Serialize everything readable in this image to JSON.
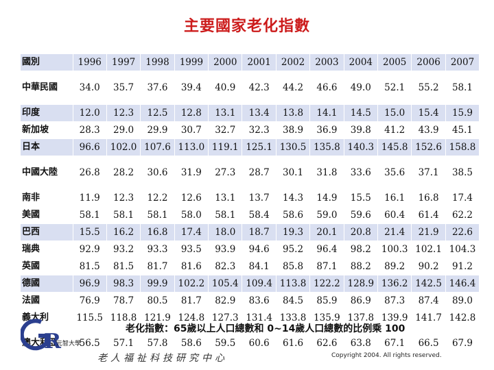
{
  "title": "主要國家老化指數",
  "table": {
    "header_label": "國別",
    "years": [
      "1996",
      "1997",
      "1998",
      "1999",
      "2000",
      "2001",
      "2002",
      "2003",
      "2004",
      "2005",
      "2006",
      "2007"
    ],
    "rows": [
      {
        "country": "中華民國",
        "values": [
          "34.0",
          "35.7",
          "37.6",
          "39.4",
          "40.9",
          "42.3",
          "44.2",
          "46.6",
          "49.0",
          "52.1",
          "55.2",
          "58.1"
        ]
      },
      {
        "country": "印度",
        "values": [
          "12.0",
          "12.3",
          "12.5",
          "12.8",
          "13.1",
          "13.4",
          "13.8",
          "14.1",
          "14.5",
          "15.0",
          "15.4",
          "15.9"
        ]
      },
      {
        "country": "新加坡",
        "values": [
          "28.3",
          "29.0",
          "29.9",
          "30.7",
          "32.7",
          "32.3",
          "38.9",
          "36.9",
          "39.8",
          "41.2",
          "43.9",
          "45.1"
        ]
      },
      {
        "country": "日本",
        "values": [
          "96.6",
          "102.0",
          "107.6",
          "113.0",
          "119.1",
          "125.1",
          "130.5",
          "135.8",
          "140.3",
          "145.8",
          "152.6",
          "158.8"
        ]
      },
      {
        "country": "中國大陸",
        "values": [
          "26.8",
          "28.2",
          "30.6",
          "31.9",
          "27.3",
          "28.7",
          "30.1",
          "31.8",
          "33.6",
          "35.6",
          "37.1",
          "38.5"
        ]
      },
      {
        "country": "南非",
        "values": [
          "11.9",
          "12.3",
          "12.2",
          "12.6",
          "13.1",
          "13.7",
          "14.3",
          "14.9",
          "15.5",
          "16.1",
          "16.8",
          "17.4"
        ]
      },
      {
        "country": "美國",
        "values": [
          "58.1",
          "58.1",
          "58.1",
          "58.0",
          "58.1",
          "58.4",
          "58.6",
          "59.0",
          "59.6",
          "60.4",
          "61.4",
          "62.2"
        ]
      },
      {
        "country": "巴西",
        "values": [
          "15.5",
          "16.2",
          "16.8",
          "17.4",
          "18.0",
          "18.7",
          "19.3",
          "20.1",
          "20.8",
          "21.4",
          "21.9",
          "22.6"
        ]
      },
      {
        "country": "瑞典",
        "values": [
          "92.9",
          "93.2",
          "93.3",
          "93.5",
          "93.9",
          "94.6",
          "95.2",
          "96.4",
          "98.2",
          "100.3",
          "102.1",
          "104.3"
        ]
      },
      {
        "country": "英國",
        "values": [
          "81.5",
          "81.5",
          "81.7",
          "81.6",
          "82.3",
          "84.1",
          "85.8",
          "87.1",
          "88.2",
          "89.2",
          "90.2",
          "91.2"
        ]
      },
      {
        "country": "德國",
        "values": [
          "96.9",
          "98.3",
          "99.9",
          "102.2",
          "105.4",
          "109.4",
          "113.8",
          "122.2",
          "128.9",
          "136.2",
          "142.5",
          "146.4"
        ]
      },
      {
        "country": "法國",
        "values": [
          "76.9",
          "78.7",
          "80.5",
          "81.7",
          "82.9",
          "83.6",
          "84.5",
          "85.9",
          "86.9",
          "87.3",
          "87.4",
          "89.0"
        ]
      },
      {
        "country": "義大利",
        "values": [
          "115.5",
          "118.8",
          "121.9",
          "124.8",
          "127.3",
          "131.4",
          "133.8",
          "135.9",
          "137.8",
          "139.9",
          "141.7",
          "142.8"
        ]
      },
      {
        "country": "澳大利亞",
        "values": [
          "56.5",
          "57.1",
          "57.8",
          "58.6",
          "59.5",
          "60.6",
          "61.6",
          "62.6",
          "63.8",
          "67.1",
          "66.5",
          "67.9"
        ]
      }
    ]
  },
  "footer_note": "老化指數：65歲以上人口總數和 0~14歲人口總數的比例乘 100",
  "logo": {
    "text": "GR",
    "sub": "元智大學"
  },
  "institute": "老人福祉科技研究中心",
  "copyright": "Copyright 2004. All rights reserved."
}
